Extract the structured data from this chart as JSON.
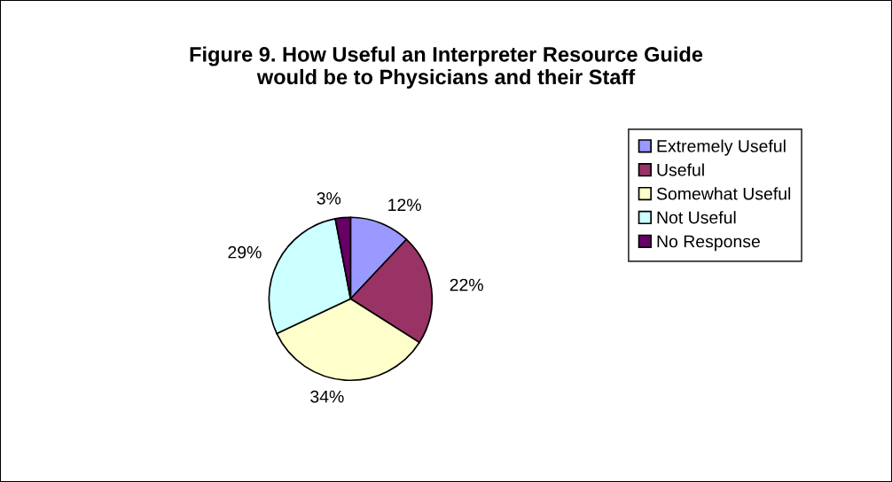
{
  "chart_data": {
    "type": "pie",
    "title": "Figure 9. How Useful an Interpreter Resource Guide\nwould be to Physicians and their Staff",
    "categories": [
      "Extremely Useful",
      "Useful",
      "Somewhat Useful",
      "Not Useful",
      "No Response"
    ],
    "values": [
      12,
      22,
      34,
      29,
      3
    ],
    "colors": [
      "#9999ff",
      "#993366",
      "#ffffcc",
      "#ccffff",
      "#660066"
    ],
    "value_labels": [
      "12%",
      "22%",
      "34%",
      "29%",
      "3%"
    ],
    "legend": "right"
  }
}
